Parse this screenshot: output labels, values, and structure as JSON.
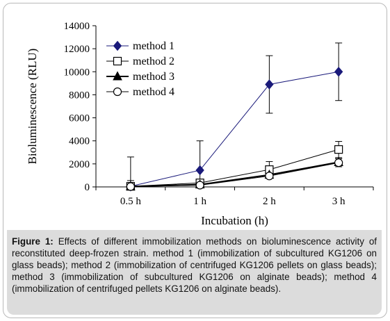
{
  "chart_data": {
    "type": "line",
    "categories": [
      "0.5 h",
      "1 h",
      "2 h",
      "3 h"
    ],
    "xlabel": "Incubation (h)",
    "ylabel": "Bioluminescence (RLU)",
    "ylim": [
      0,
      14000
    ],
    "yticks": [
      0,
      2000,
      4000,
      6000,
      8000,
      10000,
      12000,
      14000
    ],
    "grid": false,
    "legend_position": "top-left",
    "series": [
      {
        "name": "method 1",
        "marker": "diamond-filled",
        "color": "#1a1a7a",
        "values": [
          50,
          1450,
          8900,
          10000
        ],
        "error": [
          2550,
          2550,
          2500,
          2500
        ]
      },
      {
        "name": "method 2",
        "marker": "square-open",
        "color": "#000000",
        "values": [
          50,
          350,
          1500,
          3250
        ],
        "error": [
          500,
          250,
          700,
          700
        ]
      },
      {
        "name": "method 3",
        "marker": "triangle-filled",
        "color": "#000000",
        "values": [
          40,
          200,
          1050,
          2150
        ],
        "error": [
          250,
          150,
          150,
          300
        ]
      },
      {
        "name": "method 4",
        "marker": "circle-open",
        "color": "#000000",
        "values": [
          30,
          150,
          950,
          2100
        ],
        "error": [
          200,
          100,
          150,
          350
        ]
      }
    ]
  },
  "caption": {
    "label": "Figure 1:",
    "text": "Effects of different immobilization methods on bioluminescence activity of reconstituted deep-frozen strain. method 1 (immobilization of subcultured KG1206 on glass beads); method 2 (immobilization of centrifuged KG1206 pellets on glass beads); method 3 (immobilization of subcultured KG1206 on alginate beads); method 4 (immobilization of centrifuged pellets KG1206 on alginate beads)."
  }
}
